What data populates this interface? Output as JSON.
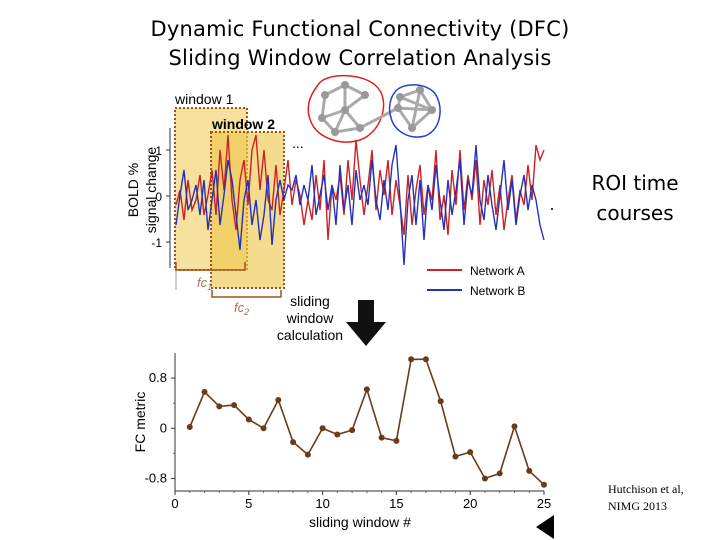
{
  "title_line1": "Dynamic Functional Connectivity (DFC)",
  "title_line2": "Sliding Window Correlation Analysis",
  "roi_label_line1": "ROI time",
  "roi_label_line2": "courses",
  "window1_label": "window 1",
  "window2_label": "window 2",
  "ellipsis": "...",
  "fc1_label": "fc",
  "fc1_sub": "1",
  "fc2_label": "fc",
  "fc2_sub": "2",
  "bold_ylabel_line1": "BOLD %",
  "bold_ylabel_line2": "signal change",
  "bold_ticks": [
    "1",
    "0",
    "-1"
  ],
  "legend": [
    {
      "name": "Network A",
      "color": "#cc2222"
    },
    {
      "name": "Network B",
      "color": "#2233bb"
    }
  ],
  "calc_label_lines": [
    "sliding",
    "window",
    "calculation"
  ],
  "citation_line1": "Hutchison et al,",
  "citation_line2": "NIMG  2013",
  "colors": {
    "network_a": "#cc2222",
    "network_b": "#2233bb",
    "fc_line": "#6b3a1a",
    "window_fill": "#f0c850",
    "window_border": "#a0521e"
  },
  "chart_data": {
    "type": "line",
    "xlabel": "sliding window #",
    "ylabel": "FC metric",
    "xlim": [
      0,
      25
    ],
    "ylim": [
      -1.0,
      1.2
    ],
    "xticks": [
      0,
      5,
      10,
      15,
      20,
      25
    ],
    "yticks": [
      0.8,
      0,
      -0.8
    ],
    "ytick_labels": [
      "0.8",
      "0",
      "-0.8"
    ],
    "series": [
      {
        "name": "",
        "x": [
          1,
          2,
          3,
          4,
          5,
          6,
          7,
          8,
          9,
          10,
          11,
          12,
          13,
          14,
          15,
          16,
          17,
          18,
          19,
          20,
          21,
          22,
          23,
          24,
          25
        ],
        "y": [
          0.02,
          0.58,
          0.35,
          0.37,
          0.14,
          0.0,
          0.45,
          -0.22,
          -0.42,
          0.0,
          -0.1,
          -0.03,
          0.62,
          -0.15,
          -0.2,
          1.1,
          1.1,
          0.43,
          -0.45,
          -0.38,
          -0.8,
          -0.72,
          0.03,
          -0.68,
          -0.9
        ]
      }
    ]
  }
}
